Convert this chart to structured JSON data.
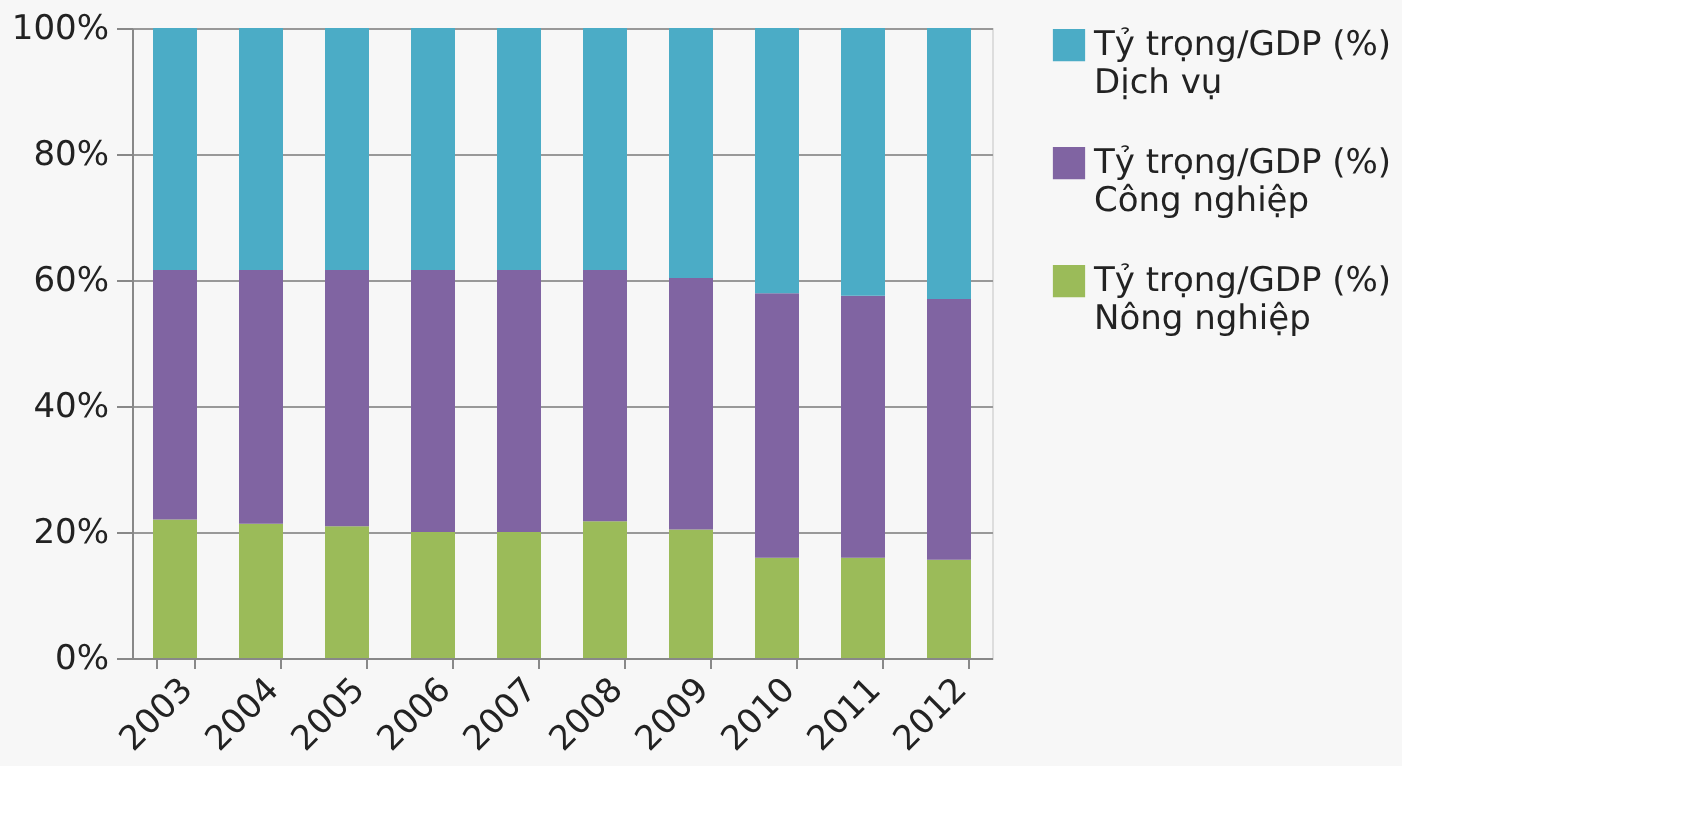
{
  "chart_data": {
    "type": "bar",
    "stacked": true,
    "categories": [
      "2003",
      "2004",
      "2005",
      "2006",
      "2007",
      "2008",
      "2009",
      "2010",
      "2011",
      "2012"
    ],
    "series": [
      {
        "name": "Tỷ trọng/GDP (%)\nNông nghiệp",
        "color": "#9bbb59",
        "values": [
          22.0,
          21.3,
          20.9,
          20.0,
          20.0,
          21.7,
          20.4,
          15.9,
          15.9,
          15.6
        ]
      },
      {
        "name": "Tỷ trọng/GDP (%)\nCông nghiệp",
        "color": "#8064a2",
        "values": [
          39.6,
          40.3,
          40.7,
          41.6,
          41.6,
          39.9,
          39.9,
          42.0,
          41.6,
          41.4
        ]
      },
      {
        "name": "Tỷ trọng/GDP (%)\nDịch vụ",
        "color": "#4bacc6",
        "values": [
          38.4,
          38.4,
          38.4,
          38.4,
          38.4,
          38.4,
          39.7,
          42.1,
          42.5,
          43.0
        ]
      }
    ],
    "ylim": [
      0,
      100
    ],
    "yticks": [
      {
        "value": 0,
        "label": "0%"
      },
      {
        "value": 20,
        "label": "20%"
      },
      {
        "value": 40,
        "label": "40%"
      },
      {
        "value": 60,
        "label": "60%"
      },
      {
        "value": 80,
        "label": "80%"
      },
      {
        "value": 100,
        "label": "100%"
      }
    ],
    "grid": "y",
    "legend": "right"
  }
}
